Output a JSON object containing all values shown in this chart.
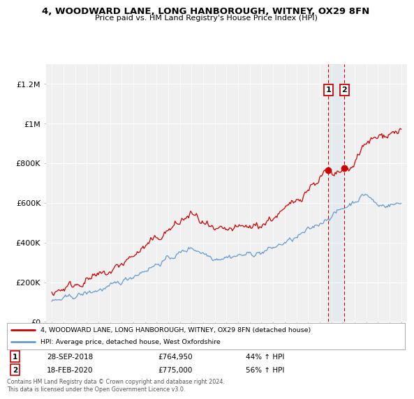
{
  "title": "4, WOODWARD LANE, LONG HANBOROUGH, WITNEY, OX29 8FN",
  "subtitle": "Price paid vs. HM Land Registry's House Price Index (HPI)",
  "legend_line1": "4, WOODWARD LANE, LONG HANBOROUGH, WITNEY, OX29 8FN (detached house)",
  "legend_line2": "HPI: Average price, detached house, West Oxfordshire",
  "transaction1_date": "28-SEP-2018",
  "transaction1_price": "£764,950",
  "transaction1_hpi": "44% ↑ HPI",
  "transaction2_date": "18-FEB-2020",
  "transaction2_price": "£775,000",
  "transaction2_hpi": "56% ↑ HPI",
  "footer": "Contains HM Land Registry data © Crown copyright and database right 2024.\nThis data is licensed under the Open Government Licence v3.0.",
  "line_color_red": "#cc0000",
  "line_color_blue": "#6699cc",
  "marker_color": "#cc0000",
  "vline_color": "#cc0000",
  "background_color": "#ffffff",
  "plot_bg_color": "#f0f0f0",
  "transaction1_x": 2018.75,
  "transaction1_y": 764950,
  "transaction2_x": 2020.13,
  "transaction2_y": 775000,
  "ylim": [
    0,
    1300000
  ],
  "xlim": [
    1994.5,
    2025.5
  ],
  "yticks": [
    0,
    200000,
    400000,
    600000,
    800000,
    1000000,
    1200000
  ],
  "ytick_labels": [
    "£0",
    "£200K",
    "£400K",
    "£600K",
    "£800K",
    "£1M",
    "£1.2M"
  ],
  "xticks": [
    1995,
    1996,
    1997,
    1998,
    1999,
    2000,
    2001,
    2002,
    2003,
    2004,
    2005,
    2006,
    2007,
    2008,
    2009,
    2010,
    2011,
    2012,
    2013,
    2014,
    2015,
    2016,
    2017,
    2018,
    2019,
    2020,
    2021,
    2022,
    2023,
    2024,
    2025
  ]
}
